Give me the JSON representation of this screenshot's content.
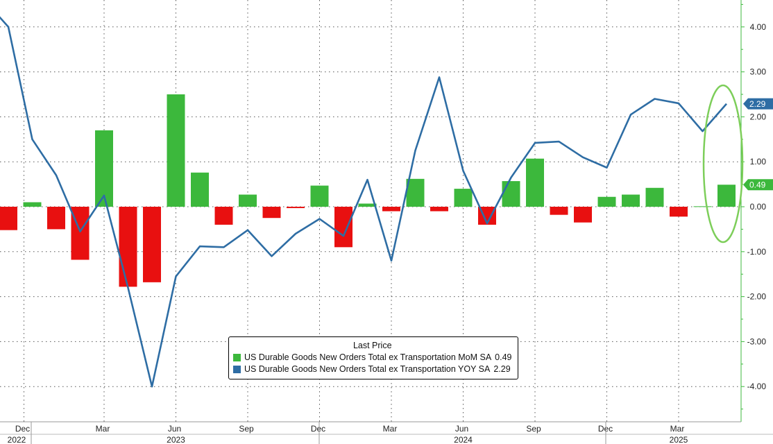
{
  "chart_data": {
    "type": "bar+line",
    "y_axis": {
      "position": "right",
      "ylim": [
        -4.8,
        4.6
      ],
      "ticks": [
        4,
        3,
        2,
        1,
        0,
        -1,
        -2,
        -3,
        -4
      ],
      "tick_labels": [
        "4.00",
        "3.00",
        "2.00",
        "1.00",
        "0.00",
        "-1.00",
        "-2.00",
        "-3.00",
        "-4.00"
      ],
      "color": "#3cb83c"
    },
    "x_axis": {
      "month_labels": [
        {
          "label": "Dec",
          "year": "2022",
          "index": 1
        },
        {
          "label": "Mar",
          "index": 4
        },
        {
          "label": "Jun",
          "year": "2023",
          "index": 7
        },
        {
          "label": "Sep",
          "index": 10
        },
        {
          "label": "Dec",
          "index": 13
        },
        {
          "label": "Mar",
          "index": 16
        },
        {
          "label": "Jun",
          "year": "2024",
          "index": 19
        },
        {
          "label": "Sep",
          "index": 22
        },
        {
          "label": "Dec",
          "index": 25
        },
        {
          "label": "Mar",
          "year": "2025",
          "index": 28
        }
      ]
    },
    "grid": true,
    "series": [
      {
        "name": "US Durable Goods New Orders Total ex Transportation MoM SA",
        "type": "bar",
        "last_value": "0.49",
        "positive_color": "#3cb83c",
        "negative_color": "#e81010",
        "values": [
          -0.52,
          0.1,
          -0.5,
          -1.18,
          1.7,
          -1.78,
          -1.68,
          2.5,
          0.76,
          -0.4,
          0.27,
          -0.25,
          -0.03,
          0.47,
          -0.9,
          0.07,
          -0.1,
          0.62,
          -0.1,
          0.4,
          -0.4,
          0.57,
          1.07,
          -0.18,
          -0.35,
          0.22,
          0.27,
          0.42,
          -0.22,
          0.01,
          0.49
        ]
      },
      {
        "name": "US Durable Goods New Orders Total ex Transportation YOY SA",
        "type": "line",
        "last_value": "2.29",
        "color": "#2e6da4",
        "x_offset": -1,
        "values": [
          4.6,
          4.0,
          1.5,
          0.7,
          -0.55,
          0.25,
          -1.8,
          -4.0,
          -1.55,
          -0.88,
          -0.9,
          -0.52,
          -1.1,
          -0.6,
          -0.27,
          -0.65,
          0.6,
          -1.2,
          1.25,
          2.88,
          0.8,
          -0.37,
          0.65,
          1.42,
          1.45,
          1.1,
          0.87,
          2.05,
          2.4,
          2.3,
          1.68,
          2.29
        ]
      }
    ],
    "annotation": {
      "type": "ellipse",
      "color": "#7dce5a",
      "around": "last values"
    }
  },
  "legend": {
    "title": "Last Price",
    "items": [
      {
        "label": "US Durable Goods New Orders Total ex Transportation MoM SA",
        "value": "0.49",
        "color": "#3cb83c"
      },
      {
        "label": "US Durable Goods New Orders Total ex Transportation YOY SA",
        "value": "2.29",
        "color": "#2e6da4"
      }
    ]
  },
  "value_tags": [
    {
      "value": "2.29",
      "color": "#2e6da4"
    },
    {
      "value": "0.49",
      "color": "#3cb83c"
    }
  ]
}
